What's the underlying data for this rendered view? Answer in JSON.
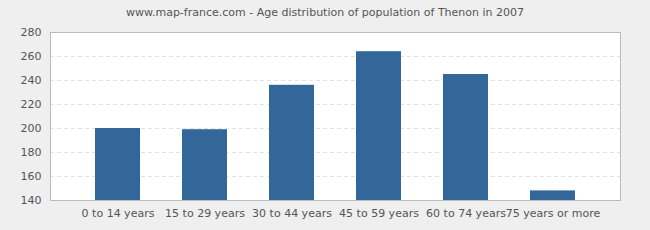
{
  "chart_data": {
    "type": "bar",
    "title": "www.map-france.com - Age distribution of population of Thenon in 2007",
    "categories": [
      "0 to 14 years",
      "15 to 29 years",
      "30 to 44 years",
      "45 to 59 years",
      "60 to 74 years",
      "75 years or more"
    ],
    "values": [
      200,
      199,
      236,
      264,
      245,
      148
    ],
    "color": "#336699",
    "ylim": [
      140,
      280
    ],
    "yticks": [
      140,
      160,
      180,
      200,
      220,
      240,
      260,
      280
    ],
    "grid": true
  }
}
